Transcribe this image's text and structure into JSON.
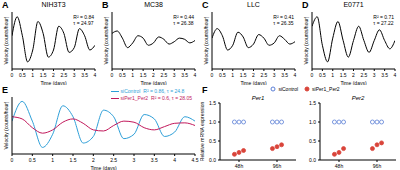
{
  "chart_data": [
    {
      "type": "line",
      "label": "A",
      "title": "NIH3T3",
      "annotations": [
        "R² = 0.84",
        "τ = 24.97"
      ],
      "xlabel": "Time (days)",
      "ylabel": "Velocity (counts/hour)",
      "tick_labels": "x",
      "color": "#000000",
      "x": [
        0,
        0.25,
        0.5,
        0.75,
        1,
        1.25,
        1.5,
        1.75,
        2,
        2.25,
        2.5,
        2.75,
        3,
        3.25,
        3.5,
        3.75,
        4
      ],
      "values": [
        0.2,
        1.0,
        0.2,
        -0.9,
        -0.4,
        0.8,
        0.3,
        -0.7,
        -0.4,
        0.6,
        0.3,
        -0.5,
        -0.3,
        0.5,
        0.2,
        -0.4,
        -0.2
      ],
      "xlim": [
        0,
        4
      ],
      "xticks": [
        0,
        0.5,
        1,
        1.5,
        2,
        2.5,
        3,
        3.5,
        4
      ],
      "ylim": [
        -1.2,
        1.2
      ]
    },
    {
      "type": "line",
      "label": "B",
      "title": "MC38",
      "annotations": [
        "R² = 0.44",
        "τ = 26.38"
      ],
      "xlabel": "Time (days)",
      "ylabel": "Velocity (counts/hour)",
      "tick_labels": "x",
      "color": "#000000",
      "x": [
        0,
        0.25,
        0.5,
        0.75,
        1,
        1.25,
        1.5,
        1.75,
        2,
        2.25,
        2.5,
        2.75,
        3,
        3.25,
        3.5,
        3.75,
        4
      ],
      "values": [
        0.3,
        0.4,
        0.1,
        -0.3,
        -0.1,
        0.2,
        0.1,
        -0.2,
        -0.1,
        0.15,
        0.05,
        -0.15,
        -0.05,
        0.1,
        0.05,
        -0.1,
        0
      ],
      "xlim": [
        0,
        4
      ],
      "xticks": [
        0,
        0.5,
        1,
        1.5,
        2,
        2.5,
        3,
        3.5,
        4
      ],
      "ylim": [
        -1.2,
        1.2
      ]
    },
    {
      "type": "line",
      "label": "C",
      "title": "LLC",
      "annotations": [
        "R² = 0.41",
        "τ = 26.35"
      ],
      "xlabel": "Time (days)",
      "ylabel": "Velocity (counts/hour)",
      "tick_labels": "x",
      "color": "#000000",
      "x": [
        0,
        0.25,
        0.5,
        0.75,
        1,
        1.25,
        1.5,
        1.75,
        2,
        2.25,
        2.5,
        2.75,
        3,
        3.25,
        3.5,
        3.75,
        4
      ],
      "values": [
        0.1,
        0.5,
        0.2,
        -0.4,
        -0.2,
        0.35,
        0.15,
        -0.3,
        -0.15,
        0.25,
        0.1,
        -0.2,
        -0.1,
        0.2,
        0.05,
        -0.15,
        -0.05
      ],
      "xlim": [
        0,
        4
      ],
      "xticks": [
        0,
        0.5,
        1,
        1.5,
        2,
        2.5,
        3,
        3.5,
        4
      ],
      "ylim": [
        -1.2,
        1.2
      ]
    },
    {
      "type": "line",
      "label": "D",
      "title": "E0771",
      "annotations": [
        "R² = 0.71",
        "τ = 27.22"
      ],
      "xlabel": "Time (days)",
      "ylabel": "Velocity (counts/hour)",
      "tick_labels": "x",
      "color": "#000000",
      "x": [
        0,
        0.25,
        0.5,
        0.75,
        1,
        1.25,
        1.5,
        1.75,
        2,
        2.25,
        2.5,
        2.75,
        3,
        3.25,
        3.5,
        3.75,
        4
      ],
      "values": [
        0.6,
        1.0,
        -0.2,
        -0.9,
        0.1,
        0.8,
        0.0,
        -0.7,
        0.0,
        0.6,
        0.0,
        -0.5,
        0.0,
        0.45,
        0.0,
        -0.35,
        0.0
      ],
      "xlim": [
        0,
        4
      ],
      "xticks": [
        0,
        0.5,
        1,
        1.5,
        2,
        2.5,
        3,
        3.5,
        4
      ],
      "ylim": [
        -1.2,
        1.2
      ]
    },
    {
      "type": "line",
      "label": "E",
      "xlabel": "Time (days)",
      "ylabel": "Velocity (counts/hour)",
      "tick_labels": "x",
      "legend": "upper right",
      "x": [
        0,
        0.25,
        0.5,
        0.75,
        1,
        1.25,
        1.5,
        1.75,
        2,
        2.25,
        2.5,
        2.75,
        3,
        3.25,
        3.5,
        3.75,
        4,
        4.25,
        4.5
      ],
      "series": [
        {
          "name": "siControl",
          "annotation": "R² = 0.86, τ = 24.8",
          "color": "#2e9fd8",
          "values": [
            0.2,
            1.1,
            0.2,
            -1.0,
            -0.4,
            0.9,
            0.4,
            -0.8,
            -0.5,
            0.7,
            0.4,
            -0.6,
            -0.4,
            0.5,
            0.3,
            -0.5,
            -0.3,
            0.4,
            0.2
          ]
        },
        {
          "name": "siPer1_Per2",
          "annotation": "R² = 0.6, τ = 28.05",
          "color": "#c2185b",
          "values": [
            0.4,
            0.3,
            -0.1,
            -0.35,
            -0.2,
            0.15,
            0.3,
            0.1,
            -0.2,
            -0.25,
            0.0,
            0.2,
            0.15,
            -0.1,
            -0.2,
            -0.05,
            0.1,
            0.12,
            0.0
          ]
        }
      ],
      "xlim": [
        0,
        4.5
      ],
      "xticks": [
        0,
        0.5,
        1,
        1.5,
        2,
        2.5,
        3,
        3.5,
        4,
        4.5
      ],
      "ylim": [
        -1.3,
        1.3
      ]
    },
    {
      "type": "scatter",
      "label": "F",
      "ylabel": "Relative mRNA expression",
      "legend": "top",
      "categories": [
        "48h",
        "96h"
      ],
      "ylim": [
        0,
        1.5
      ],
      "yticks": [
        {
          "value": 0,
          "label": "0.0"
        },
        {
          "value": 0.5,
          "label": "0.5"
        },
        {
          "value": 1,
          "label": "1.0"
        },
        {
          "value": 1.5,
          "label": "1.5"
        }
      ],
      "series": [
        {
          "name": "siControl",
          "color": "#5b7fd6",
          "marker": "open_circle"
        },
        {
          "name": "siPer1_Per2",
          "color": "#d9443a",
          "marker": "circle"
        }
      ],
      "subplots": [
        {
          "title": "Per1",
          "values": [
            [
              [
                1,
                1,
                1
              ],
              [
                1,
                1,
                1
              ]
            ],
            [
              [
                0.15,
                0.2,
                0.25
              ],
              [
                0.3,
                0.35,
                0.4
              ]
            ]
          ]
        },
        {
          "title": "Per2",
          "values": [
            [
              [
                1,
                1,
                1
              ],
              [
                1,
                1,
                1
              ]
            ],
            [
              [
                0.15,
                0.2,
                0.3
              ],
              [
                0.3,
                0.4,
                0.45
              ]
            ]
          ]
        }
      ]
    }
  ]
}
